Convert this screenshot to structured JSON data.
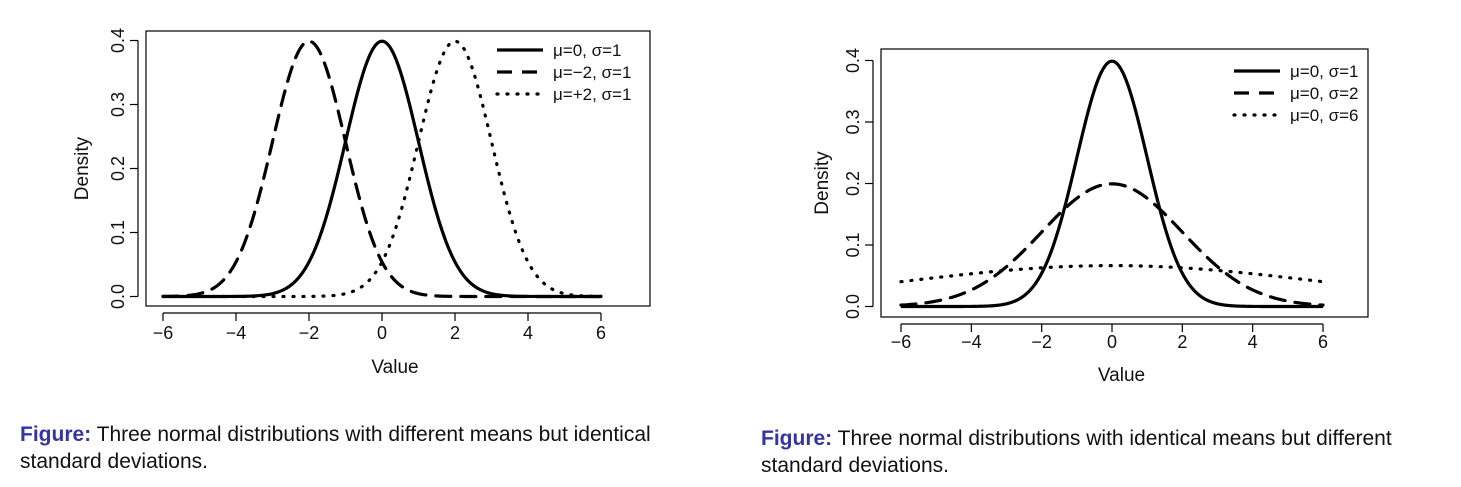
{
  "chart_data": [
    {
      "type": "line",
      "xlabel": "Value",
      "ylabel": "Density",
      "xlim": [
        -6,
        6
      ],
      "ylim": [
        0,
        0.4
      ],
      "x_ticks": [
        "−6",
        "−4",
        "−2",
        "0",
        "2",
        "4",
        "6"
      ],
      "y_ticks": [
        "0.0",
        "0.1",
        "0.2",
        "0.3",
        "0.4"
      ],
      "x_tick_values": [
        -6,
        -4,
        -2,
        0,
        2,
        4,
        6
      ],
      "y_tick_values": [
        0,
        0.1,
        0.2,
        0.3,
        0.4
      ],
      "x_range": [
        -6,
        6
      ],
      "legend_position": "top-right",
      "grid": false,
      "series": [
        {
          "name": "μ=0, σ=1",
          "mu": 0,
          "sigma": 1,
          "style": "solid"
        },
        {
          "name": "μ=−2, σ=1",
          "mu": -2,
          "sigma": 1,
          "style": "dashed"
        },
        {
          "name": "μ=+2, σ=1",
          "mu": 2,
          "sigma": 1,
          "style": "dotted"
        }
      ]
    },
    {
      "type": "line",
      "xlabel": "Value",
      "ylabel": "Density",
      "xlim": [
        -6,
        6
      ],
      "ylim": [
        0,
        0.4
      ],
      "x_ticks": [
        "−6",
        "−4",
        "−2",
        "0",
        "2",
        "4",
        "6"
      ],
      "y_ticks": [
        "0.0",
        "0.1",
        "0.2",
        "0.3",
        "0.4"
      ],
      "x_tick_values": [
        -6,
        -4,
        -2,
        0,
        2,
        4,
        6
      ],
      "y_tick_values": [
        0,
        0.1,
        0.2,
        0.3,
        0.4
      ],
      "x_range": [
        -6,
        6
      ],
      "legend_position": "top-right",
      "grid": false,
      "series": [
        {
          "name": "μ=0, σ=1",
          "mu": 0,
          "sigma": 1,
          "style": "solid"
        },
        {
          "name": "μ=0, σ=2",
          "mu": 0,
          "sigma": 2,
          "style": "dashed"
        },
        {
          "name": "μ=0, σ=6",
          "mu": 0,
          "sigma": 6,
          "style": "dotted"
        }
      ]
    }
  ],
  "captions": [
    {
      "label": "Figure:",
      "text": " Three normal distributions with different means but identical standard deviations."
    },
    {
      "label": "Figure:",
      "text": " Three normal distributions with identical means but different standard deviations."
    }
  ],
  "colors": {
    "curve": "#000000",
    "caption_label": "#3333aa",
    "text": "#111111"
  }
}
